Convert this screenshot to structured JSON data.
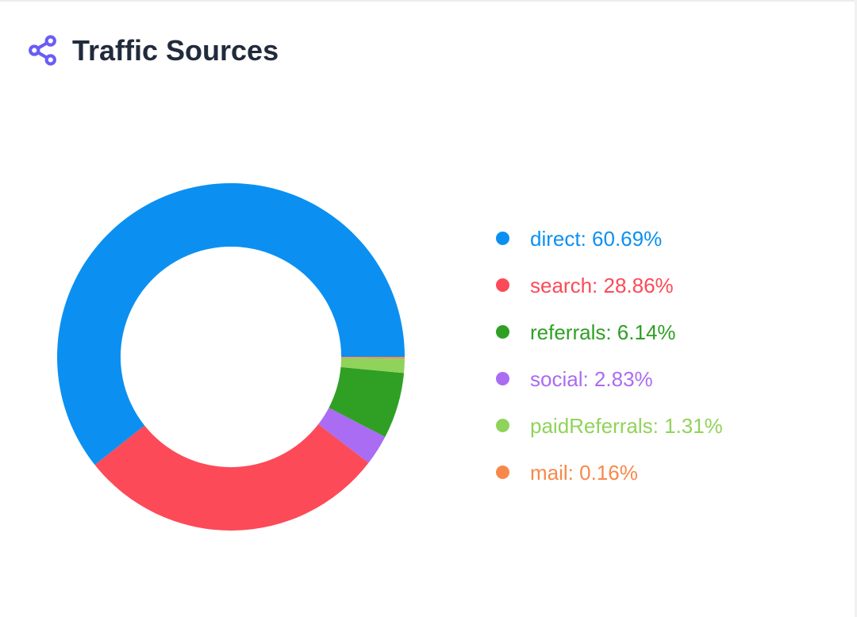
{
  "header": {
    "title": "Traffic Sources",
    "icon": "share-nodes-icon",
    "icon_color": "#6A5CF6",
    "title_color": "#202B3C"
  },
  "chart_data": {
    "type": "pie",
    "donut": true,
    "title": "Traffic Sources",
    "unit": "%",
    "legend_position": "right",
    "inner_radius_ratio": 0.635,
    "start_angle_deg": 0,
    "direction": "counterclockwise",
    "draw_order": [
      "direct",
      "search",
      "social",
      "referrals",
      "paidReferrals",
      "mail"
    ],
    "series": [
      {
        "name": "direct",
        "value": 60.69,
        "label": "direct: 60.69%",
        "color": "#0B90F1"
      },
      {
        "name": "search",
        "value": 28.86,
        "label": "search: 28.86%",
        "color": "#FC4A58"
      },
      {
        "name": "referrals",
        "value": 6.14,
        "label": "referrals: 6.14%",
        "color": "#2FA024"
      },
      {
        "name": "social",
        "value": 2.83,
        "label": "social: 2.83%",
        "color": "#AA6CF2"
      },
      {
        "name": "paidReferrals",
        "value": 1.31,
        "label": "paidReferrals: 1.31%",
        "color": "#90D35A"
      },
      {
        "name": "mail",
        "value": 0.16,
        "label": "mail: 0.16%",
        "color": "#F8884A"
      }
    ]
  }
}
